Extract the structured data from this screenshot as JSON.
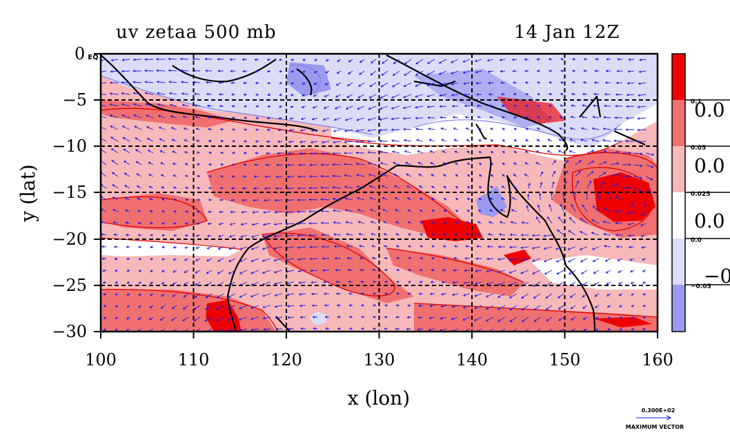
{
  "title": {
    "left": "uv zetaa 500 mb",
    "right": "14 Jan 12Z"
  },
  "axes": {
    "xlabel": "x (lon)",
    "ylabel": "y (lat)",
    "xlim": [
      100,
      160
    ],
    "ylim": [
      -30,
      0
    ],
    "xticks": [
      "100",
      "110",
      "120",
      "130",
      "140",
      "150",
      "160"
    ],
    "yticks": [
      "0 EQ",
      "−5",
      "−10",
      "−15",
      "−20",
      "−25",
      "−30"
    ],
    "grid": "dashed"
  },
  "legend": {
    "labels": [
      "0.1",
      "0.05",
      "0.025",
      "0.0",
      "−0.05"
    ],
    "truncated": [
      "0.0",
      "0.0",
      "0.0",
      "−0."
    ],
    "colors": [
      "#ee0000",
      "#f07070",
      "#f6b8b8",
      "#ffffff",
      "#dcdcf6",
      "#9a9aee"
    ]
  },
  "vector_key": {
    "value": "0.300E+02",
    "label": "MAXIMUM VECTOR"
  },
  "colors": {
    "strong_pos": "#ee0000",
    "mid_pos": "#f07070",
    "light_pos": "#f6b8b8",
    "zero": "#ffffff",
    "light_neg": "#dcdcf6",
    "neg": "#9a9aee",
    "vector": "#1a1ae6",
    "contour": "#e00000",
    "coast": "#000000"
  }
}
